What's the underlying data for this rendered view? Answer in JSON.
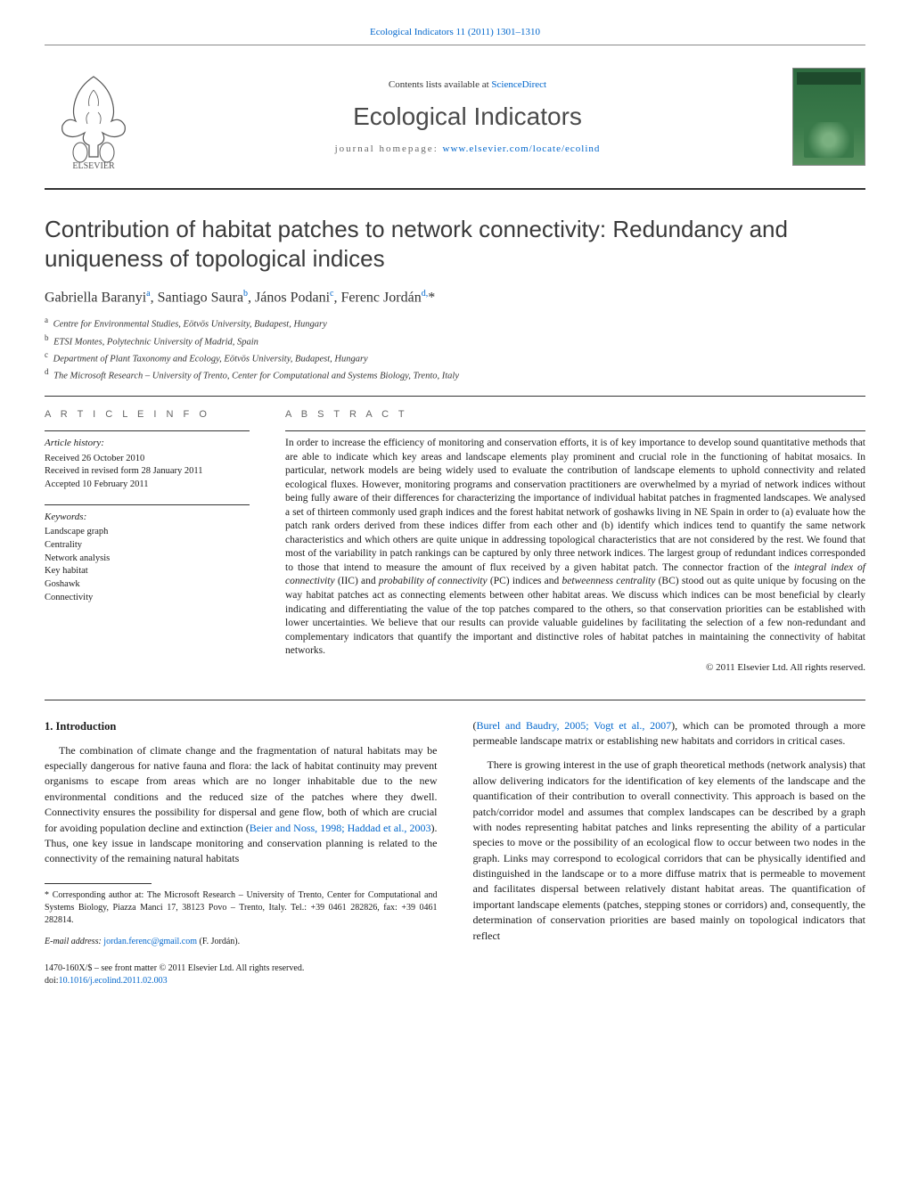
{
  "citation": "Ecological Indicators 11 (2011) 1301–1310",
  "header": {
    "contents_prefix": "Contents lists available at ",
    "contents_link": "ScienceDirect",
    "journal": "Ecological Indicators",
    "homepage_prefix": "journal homepage: ",
    "homepage_link": "www.elsevier.com/locate/ecolind"
  },
  "title": "Contribution of habitat patches to network connectivity: Redundancy and uniqueness of topological indices",
  "authors_html": "Gabriella Baranyi<sup>a</sup>, Santiago Saura<sup>b</sup>, János Podani<sup>c</sup>, Ferenc Jordán<sup>d,</sup><span class='ast'>*</span>",
  "affiliations": [
    {
      "key": "a",
      "text": "Centre for Environmental Studies, Eötvös University, Budapest, Hungary"
    },
    {
      "key": "b",
      "text": "ETSI Montes, Polytechnic University of Madrid, Spain"
    },
    {
      "key": "c",
      "text": "Department of Plant Taxonomy and Ecology, Eötvös University, Budapest, Hungary"
    },
    {
      "key": "d",
      "text": "The Microsoft Research – University of Trento, Center for Computational and Systems Biology, Trento, Italy"
    }
  ],
  "article_info": {
    "heading": "a r t i c l e   i n f o",
    "history_label": "Article history:",
    "history": [
      "Received 26 October 2010",
      "Received in revised form 28 January 2011",
      "Accepted 10 February 2011"
    ],
    "keywords_label": "Keywords:",
    "keywords": [
      "Landscape graph",
      "Centrality",
      "Network analysis",
      "Key habitat",
      "Goshawk",
      "Connectivity"
    ]
  },
  "abstract": {
    "heading": "a b s t r a c t",
    "text": "In order to increase the efficiency of monitoring and conservation efforts, it is of key importance to develop sound quantitative methods that are able to indicate which key areas and landscape elements play prominent and crucial role in the functioning of habitat mosaics. In particular, network models are being widely used to evaluate the contribution of landscape elements to uphold connectivity and related ecological fluxes. However, monitoring programs and conservation practitioners are overwhelmed by a myriad of network indices without being fully aware of their differences for characterizing the importance of individual habitat patches in fragmented landscapes. We analysed a set of thirteen commonly used graph indices and the forest habitat network of goshawks living in NE Spain in order to (a) evaluate how the patch rank orders derived from these indices differ from each other and (b) identify which indices tend to quantify the same network characteristics and which others are quite unique in addressing topological characteristics that are not considered by the rest. We found that most of the variability in patch rankings can be captured by only three network indices. The largest group of redundant indices corresponded to those that intend to measure the amount of flux received by a given habitat patch. The connector fraction of the integral index of connectivity (IIC) and probability of connectivity (PC) indices and betweenness centrality (BC) stood out as quite unique by focusing on the way habitat patches act as connecting elements between other habitat areas. We discuss which indices can be most beneficial by clearly indicating and differentiating the value of the top patches compared to the others, so that conservation priorities can be established with lower uncertainties. We believe that our results can provide valuable guidelines by facilitating the selection of a few non-redundant and complementary indicators that quantify the important and distinctive roles of habitat patches in maintaining the connectivity of habitat networks.",
    "copyright": "© 2011 Elsevier Ltd. All rights reserved."
  },
  "intro": {
    "heading": "1. Introduction",
    "col1_p1": "The combination of climate change and the fragmentation of natural habitats may be especially dangerous for native fauna and flora: the lack of habitat continuity may prevent organisms to escape from areas which are no longer inhabitable due to the new environmental conditions and the reduced size of the patches where they dwell. Connectivity ensures the possibility for dispersal and gene flow, both of which are crucial for avoiding population decline and extinction (",
    "col1_ref1": "Beier and Noss, 1998; Haddad et al., 2003",
    "col1_p1b": "). Thus, one key issue in landscape monitoring and conservation planning is related to the connectivity of the remaining natural habitats",
    "col2_p1a": "(",
    "col2_ref1": "Burel and Baudry, 2005; Vogt et al., 2007",
    "col2_p1b": "), which can be promoted through a more permeable landscape matrix or establishing new habitats and corridors in critical cases.",
    "col2_p2": "There is growing interest in the use of graph theoretical methods (network analysis) that allow delivering indicators for the identification of key elements of the landscape and the quantification of their contribution to overall connectivity. This approach is based on the patch/corridor model and assumes that complex landscapes can be described by a graph with nodes representing habitat patches and links representing the ability of a particular species to move or the possibility of an ecological flow to occur between two nodes in the graph. Links may correspond to ecological corridors that can be physically identified and distinguished in the landscape or to a more diffuse matrix that is permeable to movement and facilitates dispersal between relatively distant habitat areas. The quantification of important landscape elements (patches, stepping stones or corridors) and, consequently, the determination of conservation priorities are based mainly on topological indicators that reflect"
  },
  "footnote": {
    "corresponding": "* Corresponding author at: The Microsoft Research – University of Trento, Center for Computational and Systems Biology, Piazza Manci 17, 38123 Povo – Trento, Italy. Tel.: +39 0461 282826, fax: +39 0461 282814.",
    "email_label": "E-mail address: ",
    "email": "jordan.ferenc@gmail.com",
    "email_suffix": " (F. Jordán)."
  },
  "bottom": {
    "issn": "1470-160X/$ – see front matter © 2011 Elsevier Ltd. All rights reserved.",
    "doi_prefix": "doi:",
    "doi": "10.1016/j.ecolind.2011.02.003"
  },
  "colors": {
    "link": "#0066cc",
    "text": "#1a1a1a",
    "heading_gray": "#666666",
    "cover_green": "#2d6b3f"
  }
}
